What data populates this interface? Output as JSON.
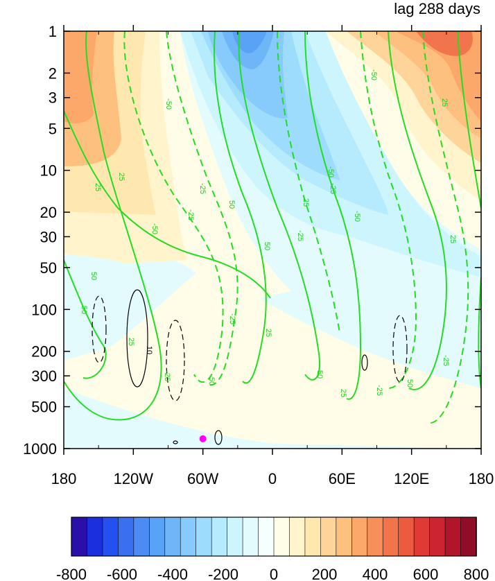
{
  "title": "lag 288 days",
  "chart_data": {
    "type": "heatmap",
    "title": "lag 288 days",
    "x_axis": {
      "range": [
        -180,
        180
      ],
      "ticks": [
        -180,
        -120,
        -60,
        0,
        60,
        120,
        180
      ],
      "tick_labels": [
        "180",
        "120W",
        "60W",
        "0",
        "60E",
        "120E",
        "180"
      ]
    },
    "y_axis": {
      "scale": "log",
      "reversed": true,
      "range": [
        1,
        1000
      ],
      "ticks": [
        1,
        2,
        3,
        5,
        10,
        20,
        30,
        50,
        100,
        200,
        300,
        500,
        1000
      ],
      "tick_labels": [
        "1",
        "2",
        "3",
        "5",
        "10",
        "20",
        "30",
        "50",
        "100",
        "200",
        "300",
        "500",
        "1000"
      ]
    },
    "colorbar": {
      "min": -800,
      "max": 800,
      "step": 50,
      "tick_values": [
        -800,
        -600,
        -400,
        -200,
        0,
        200,
        400,
        600,
        800
      ],
      "tick_labels": [
        "-800",
        "-600",
        "-400",
        "-200",
        "0",
        "200",
        "400",
        "600",
        "800"
      ],
      "colors": [
        "#2a10a8",
        "#1c2fdf",
        "#2550f0",
        "#3a6fef",
        "#4b8cf2",
        "#5aa2f5",
        "#6fb6f8",
        "#86cbfb",
        "#9ddcfc",
        "#b5ebfd",
        "#cdf5fd",
        "#e3fbfd",
        "#f4fffe",
        "#fffde8",
        "#fff4cc",
        "#ffe8b0",
        "#fed49a",
        "#fdc07f",
        "#fba86a",
        "#f78f5a",
        "#f2744c",
        "#ec5a40",
        "#e13a36",
        "#cc2530",
        "#b0152c",
        "#930c27"
      ]
    },
    "fill_regions": [
      {
        "level": -500,
        "description": "strongest negative core",
        "lon_range": [
          -50,
          -10
        ],
        "p_range": [
          1,
          2
        ]
      },
      {
        "level": -350,
        "description": "negative upper core",
        "lon_range": [
          -70,
          20
        ],
        "p_range": [
          1,
          5
        ]
      },
      {
        "level": -200,
        "description": "negative band",
        "lon_range": [
          -80,
          40
        ],
        "p_range": [
          1,
          20
        ]
      },
      {
        "level": -50,
        "description": "negative tilted tongue",
        "lon_range": [
          -110,
          110
        ],
        "p_range": [
          1,
          100
        ]
      },
      {
        "level": 500,
        "description": "strongest positive core",
        "lon_range": [
          140,
          170
        ],
        "p_range": [
          1,
          2
        ]
      },
      {
        "level": 300,
        "description": "positive east",
        "lon_range": [
          110,
          180
        ],
        "p_range": [
          1,
          10
        ]
      },
      {
        "level": 250,
        "description": "positive west",
        "lon_range": [
          -180,
          -160
        ],
        "p_range": [
          1,
          5
        ]
      },
      {
        "level": 150,
        "description": "positive west band",
        "lon_range": [
          -180,
          -90
        ],
        "p_range": [
          1,
          50
        ]
      },
      {
        "level": 50,
        "description": "weak positive lower troposphere",
        "lon_range": [
          -180,
          180
        ],
        "p_range": [
          100,
          1000
        ]
      }
    ],
    "contour_labels_green": [
      "50",
      "25",
      "-50",
      "-25",
      "-50",
      "-25",
      "25",
      "25",
      "50",
      "50",
      "50",
      "-25",
      "25",
      "-25",
      "50",
      "-50",
      "-25",
      "25",
      "-50",
      "25",
      "50",
      "-25",
      "25",
      "-25",
      "-25",
      "50",
      "25",
      "-50"
    ],
    "contour_labels_black": [
      "10"
    ],
    "marker": {
      "lon": -60,
      "p": 850,
      "color": "#ff00ff"
    }
  }
}
